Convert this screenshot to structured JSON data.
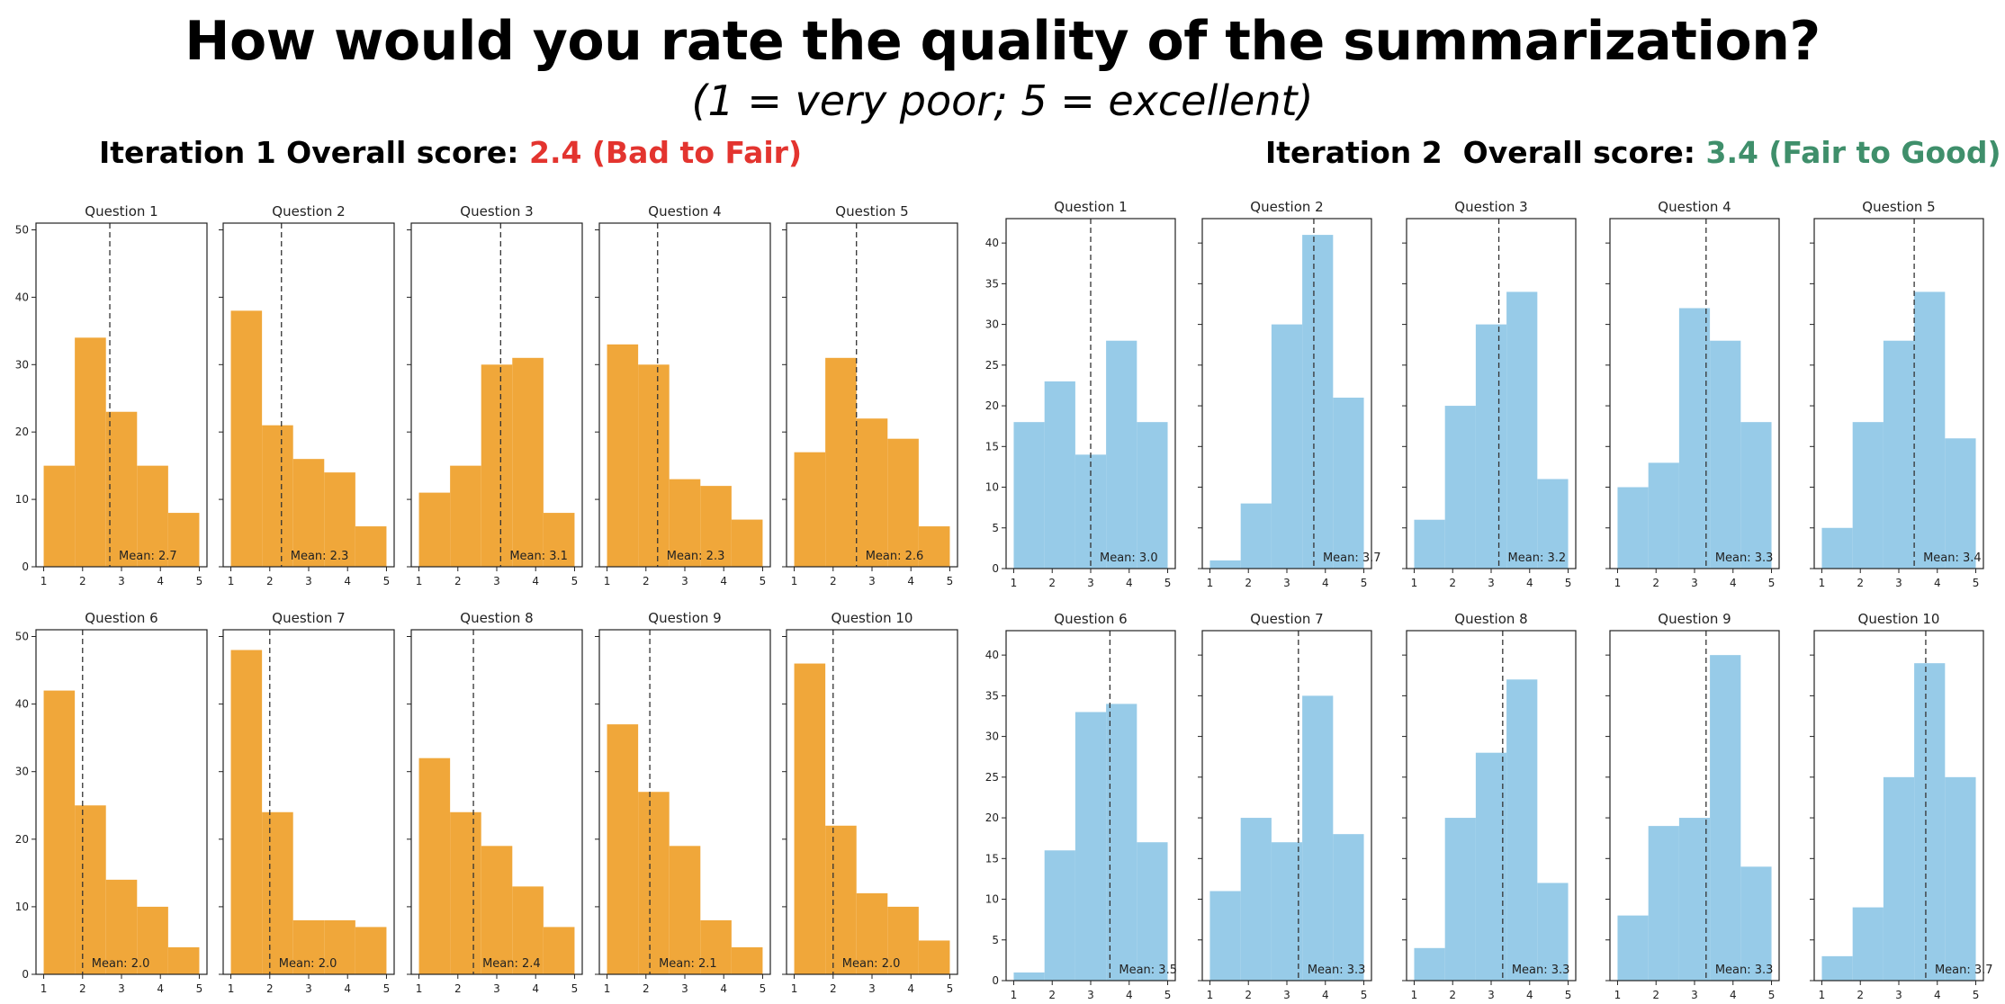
{
  "header": {
    "title": "How would you rate the quality of the summarization?",
    "subtitle": "(1 = very poor; 5 = excellent)"
  },
  "iterations": [
    {
      "label": "Iteration 1 Overall score: ",
      "score_text": "2.4 (Bad to Fair)",
      "score_color": "#e3342f",
      "bar_color": "#f0a73a"
    },
    {
      "label": "Iteration 2  Overall score: ",
      "score_text": "3.4 (Fair to Good)",
      "score_color": "#3f8f6b",
      "bar_color": "#97cbe8"
    }
  ],
  "chart_data": [
    {
      "type": "bar",
      "group": "Iteration 1",
      "title": "Question 1",
      "categories": [
        1,
        2,
        3,
        4,
        5
      ],
      "values": [
        15,
        34,
        23,
        15,
        8
      ],
      "mean": 2.7,
      "mean_label": "Mean: 2.7",
      "ylim": [
        0,
        51
      ],
      "yticks": [
        0,
        10,
        20,
        30,
        40,
        50
      ],
      "xticks": [
        1,
        2,
        3,
        4,
        5
      ]
    },
    {
      "type": "bar",
      "group": "Iteration 1",
      "title": "Question 2",
      "categories": [
        1,
        2,
        3,
        4,
        5
      ],
      "values": [
        38,
        21,
        16,
        14,
        6
      ],
      "mean": 2.3,
      "mean_label": "Mean: 2.3",
      "ylim": [
        0,
        51
      ],
      "yticks": [
        0,
        10,
        20,
        30,
        40,
        50
      ],
      "xticks": [
        1,
        2,
        3,
        4,
        5
      ]
    },
    {
      "type": "bar",
      "group": "Iteration 1",
      "title": "Question 3",
      "categories": [
        1,
        2,
        3,
        4,
        5
      ],
      "values": [
        11,
        15,
        30,
        31,
        8
      ],
      "mean": 3.1,
      "mean_label": "Mean: 3.1",
      "ylim": [
        0,
        51
      ],
      "yticks": [
        0,
        10,
        20,
        30,
        40,
        50
      ],
      "xticks": [
        1,
        2,
        3,
        4,
        5
      ]
    },
    {
      "type": "bar",
      "group": "Iteration 1",
      "title": "Question 4",
      "categories": [
        1,
        2,
        3,
        4,
        5
      ],
      "values": [
        33,
        30,
        13,
        12,
        7
      ],
      "mean": 2.3,
      "mean_label": "Mean: 2.3",
      "ylim": [
        0,
        51
      ],
      "yticks": [
        0,
        10,
        20,
        30,
        40,
        50
      ],
      "xticks": [
        1,
        2,
        3,
        4,
        5
      ]
    },
    {
      "type": "bar",
      "group": "Iteration 1",
      "title": "Question 5",
      "categories": [
        1,
        2,
        3,
        4,
        5
      ],
      "values": [
        17,
        31,
        22,
        19,
        6
      ],
      "mean": 2.6,
      "mean_label": "Mean: 2.6",
      "ylim": [
        0,
        51
      ],
      "yticks": [
        0,
        10,
        20,
        30,
        40,
        50
      ],
      "xticks": [
        1,
        2,
        3,
        4,
        5
      ]
    },
    {
      "type": "bar",
      "group": "Iteration 1",
      "title": "Question 6",
      "categories": [
        1,
        2,
        3,
        4,
        5
      ],
      "values": [
        42,
        25,
        14,
        10,
        4
      ],
      "mean": 2.0,
      "mean_label": "Mean: 2.0",
      "ylim": [
        0,
        51
      ],
      "yticks": [
        0,
        10,
        20,
        30,
        40,
        50
      ],
      "xticks": [
        1,
        2,
        3,
        4,
        5
      ]
    },
    {
      "type": "bar",
      "group": "Iteration 1",
      "title": "Question 7",
      "categories": [
        1,
        2,
        3,
        4,
        5
      ],
      "values": [
        48,
        24,
        8,
        8,
        7
      ],
      "mean": 2.0,
      "mean_label": "Mean: 2.0",
      "ylim": [
        0,
        51
      ],
      "yticks": [
        0,
        10,
        20,
        30,
        40,
        50
      ],
      "xticks": [
        1,
        2,
        3,
        4,
        5
      ]
    },
    {
      "type": "bar",
      "group": "Iteration 1",
      "title": "Question 8",
      "categories": [
        1,
        2,
        3,
        4,
        5
      ],
      "values": [
        32,
        24,
        19,
        13,
        7
      ],
      "mean": 2.4,
      "mean_label": "Mean: 2.4",
      "ylim": [
        0,
        51
      ],
      "yticks": [
        0,
        10,
        20,
        30,
        40,
        50
      ],
      "xticks": [
        1,
        2,
        3,
        4,
        5
      ]
    },
    {
      "type": "bar",
      "group": "Iteration 1",
      "title": "Question 9",
      "categories": [
        1,
        2,
        3,
        4,
        5
      ],
      "values": [
        37,
        27,
        19,
        8,
        4
      ],
      "mean": 2.1,
      "mean_label": "Mean: 2.1",
      "ylim": [
        0,
        51
      ],
      "yticks": [
        0,
        10,
        20,
        30,
        40,
        50
      ],
      "xticks": [
        1,
        2,
        3,
        4,
        5
      ]
    },
    {
      "type": "bar",
      "group": "Iteration 1",
      "title": "Question 10",
      "categories": [
        1,
        2,
        3,
        4,
        5
      ],
      "values": [
        46,
        22,
        12,
        10,
        5
      ],
      "mean": 2.0,
      "mean_label": "Mean: 2.0",
      "ylim": [
        0,
        51
      ],
      "yticks": [
        0,
        10,
        20,
        30,
        40,
        50
      ],
      "xticks": [
        1,
        2,
        3,
        4,
        5
      ]
    },
    {
      "type": "bar",
      "group": "Iteration 2",
      "title": "Question 1",
      "categories": [
        1,
        2,
        3,
        4,
        5
      ],
      "values": [
        18,
        23,
        14,
        28,
        18
      ],
      "mean": 3.0,
      "mean_label": "Mean: 3.0",
      "ylim": [
        0,
        43
      ],
      "yticks": [
        0,
        5,
        10,
        15,
        20,
        25,
        30,
        35,
        40
      ],
      "xticks": [
        1,
        2,
        3,
        4,
        5
      ]
    },
    {
      "type": "bar",
      "group": "Iteration 2",
      "title": "Question 2",
      "categories": [
        1,
        2,
        3,
        4,
        5
      ],
      "values": [
        1,
        8,
        30,
        41,
        21
      ],
      "mean": 3.7,
      "mean_label": "Mean: 3.7",
      "ylim": [
        0,
        43
      ],
      "yticks": [
        0,
        5,
        10,
        15,
        20,
        25,
        30,
        35,
        40
      ],
      "xticks": [
        1,
        2,
        3,
        4,
        5
      ]
    },
    {
      "type": "bar",
      "group": "Iteration 2",
      "title": "Question 3",
      "categories": [
        1,
        2,
        3,
        4,
        5
      ],
      "values": [
        6,
        20,
        30,
        34,
        11
      ],
      "mean": 3.2,
      "mean_label": "Mean: 3.2",
      "ylim": [
        0,
        43
      ],
      "yticks": [
        0,
        5,
        10,
        15,
        20,
        25,
        30,
        35,
        40
      ],
      "xticks": [
        1,
        2,
        3,
        4,
        5
      ]
    },
    {
      "type": "bar",
      "group": "Iteration 2",
      "title": "Question 4",
      "categories": [
        1,
        2,
        3,
        4,
        5
      ],
      "values": [
        10,
        13,
        32,
        28,
        18
      ],
      "mean": 3.3,
      "mean_label": "Mean: 3.3",
      "ylim": [
        0,
        43
      ],
      "yticks": [
        0,
        5,
        10,
        15,
        20,
        25,
        30,
        35,
        40
      ],
      "xticks": [
        1,
        2,
        3,
        4,
        5
      ]
    },
    {
      "type": "bar",
      "group": "Iteration 2",
      "title": "Question 5",
      "categories": [
        1,
        2,
        3,
        4,
        5
      ],
      "values": [
        5,
        18,
        28,
        34,
        16
      ],
      "mean": 3.4,
      "mean_label": "Mean: 3.4",
      "ylim": [
        0,
        43
      ],
      "yticks": [
        0,
        5,
        10,
        15,
        20,
        25,
        30,
        35,
        40
      ],
      "xticks": [
        1,
        2,
        3,
        4,
        5
      ]
    },
    {
      "type": "bar",
      "group": "Iteration 2",
      "title": "Question 6",
      "categories": [
        1,
        2,
        3,
        4,
        5
      ],
      "values": [
        1,
        16,
        33,
        34,
        17
      ],
      "mean": 3.5,
      "mean_label": "Mean: 3.5",
      "ylim": [
        0,
        43
      ],
      "yticks": [
        0,
        5,
        10,
        15,
        20,
        25,
        30,
        35,
        40
      ],
      "xticks": [
        1,
        2,
        3,
        4,
        5
      ]
    },
    {
      "type": "bar",
      "group": "Iteration 2",
      "title": "Question 7",
      "categories": [
        1,
        2,
        3,
        4,
        5
      ],
      "values": [
        11,
        20,
        17,
        35,
        18
      ],
      "mean": 3.3,
      "mean_label": "Mean: 3.3",
      "ylim": [
        0,
        43
      ],
      "yticks": [
        0,
        5,
        10,
        15,
        20,
        25,
        30,
        35,
        40
      ],
      "xticks": [
        1,
        2,
        3,
        4,
        5
      ]
    },
    {
      "type": "bar",
      "group": "Iteration 2",
      "title": "Question 8",
      "categories": [
        1,
        2,
        3,
        4,
        5
      ],
      "values": [
        4,
        20,
        28,
        37,
        12
      ],
      "mean": 3.3,
      "mean_label": "Mean: 3.3",
      "ylim": [
        0,
        43
      ],
      "yticks": [
        0,
        5,
        10,
        15,
        20,
        25,
        30,
        35,
        40
      ],
      "xticks": [
        1,
        2,
        3,
        4,
        5
      ]
    },
    {
      "type": "bar",
      "group": "Iteration 2",
      "title": "Question 9",
      "categories": [
        1,
        2,
        3,
        4,
        5
      ],
      "values": [
        8,
        19,
        20,
        40,
        14
      ],
      "mean": 3.3,
      "mean_label": "Mean: 3.3",
      "ylim": [
        0,
        43
      ],
      "yticks": [
        0,
        5,
        10,
        15,
        20,
        25,
        30,
        35,
        40
      ],
      "xticks": [
        1,
        2,
        3,
        4,
        5
      ]
    },
    {
      "type": "bar",
      "group": "Iteration 2",
      "title": "Question 10",
      "categories": [
        1,
        2,
        3,
        4,
        5
      ],
      "values": [
        3,
        9,
        25,
        39,
        25
      ],
      "mean": 3.7,
      "mean_label": "Mean: 3.7",
      "ylim": [
        0,
        43
      ],
      "yticks": [
        0,
        5,
        10,
        15,
        20,
        25,
        30,
        35,
        40
      ],
      "xticks": [
        1,
        2,
        3,
        4,
        5
      ]
    }
  ]
}
